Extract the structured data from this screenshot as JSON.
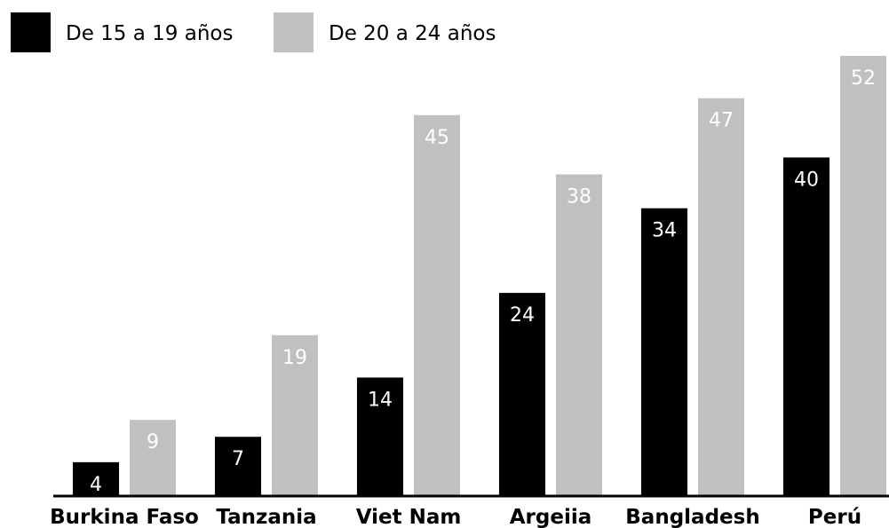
{
  "colors": {
    "series_1": "#000000",
    "series_2": "#c0c0c0",
    "axis": "#000000",
    "value_label": "#ffffff"
  },
  "legend": {
    "placement": "top-left",
    "items": [
      {
        "label": "De 15 a 19 años",
        "color": "#000000"
      },
      {
        "label": "De 20 a 24 años",
        "color": "#c0c0c0"
      }
    ]
  },
  "chart_data": {
    "type": "bar",
    "title": "",
    "xlabel": "",
    "ylabel": "",
    "grid": false,
    "categories": [
      "Burkina Faso",
      "Tanzania",
      "Viet Nam",
      "Argeiia",
      "Bangladesh",
      "Perú"
    ],
    "series": [
      {
        "name": "De 15 a 19 años",
        "values": [
          4,
          7,
          14,
          24,
          34,
          40
        ]
      },
      {
        "name": "De 20 a 24 años",
        "values": [
          9,
          19,
          45,
          38,
          47,
          52
        ]
      }
    ],
    "ylim": [
      0,
      52
    ]
  }
}
